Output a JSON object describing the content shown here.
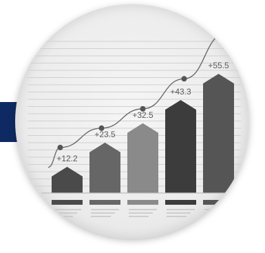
{
  "chart_data": {
    "type": "bar",
    "categories": [
      "",
      "",
      "",
      "",
      ""
    ],
    "values": [
      12.2,
      23.5,
      32.5,
      43.3,
      55.5
    ],
    "value_labels": [
      "+12.2",
      "+23.5",
      "+32.5",
      "+43.3",
      "+55.5"
    ],
    "trend_line": [
      18,
      27,
      36,
      50,
      71
    ],
    "title": "",
    "xlabel": "",
    "ylabel": "",
    "ylim": [
      0,
      70
    ],
    "grid": true,
    "bar_colors": [
      "#4a4a4a",
      "#666666",
      "#8a8a8a",
      "#3c3c3c",
      "#555555"
    ],
    "trend_color": "#6a6a6a"
  }
}
